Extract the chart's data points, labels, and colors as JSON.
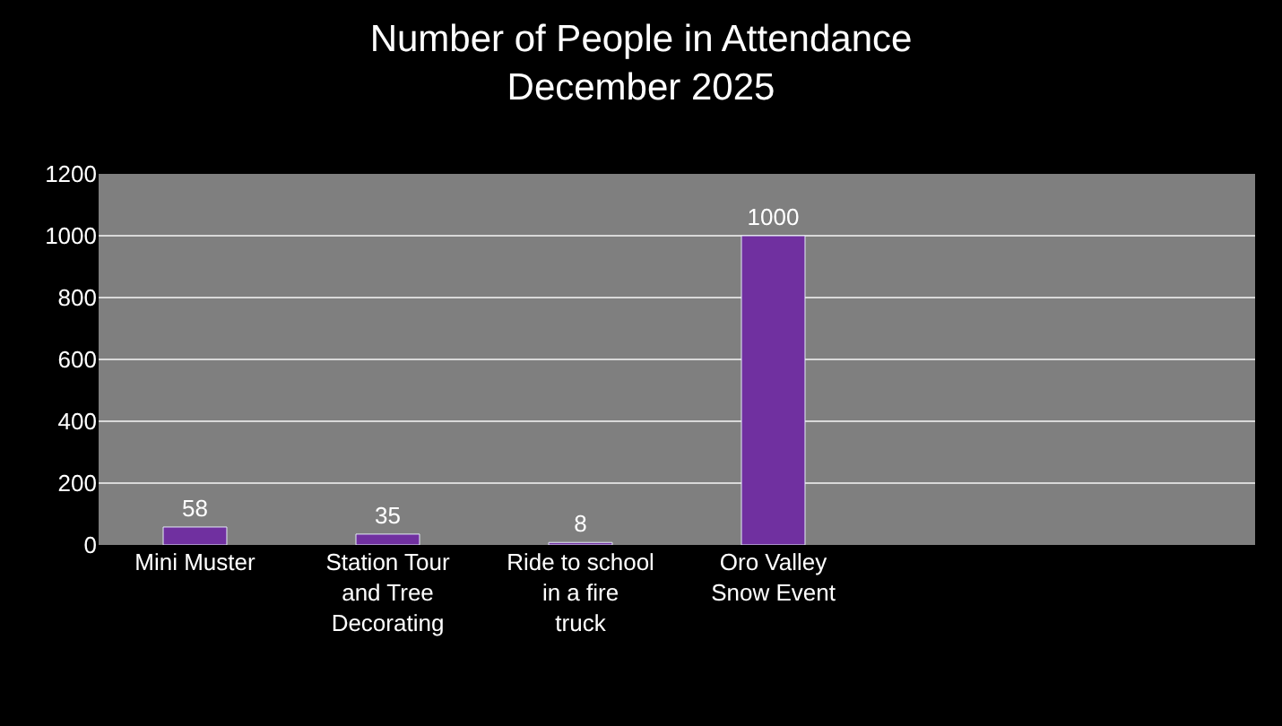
{
  "chart_data": {
    "type": "bar",
    "title": "Number of People in Attendance\nDecember 2025",
    "categories": [
      "Mini Muster",
      "Station Tour and Tree Decorating",
      "Ride to school in a fire truck",
      "Oro Valley Snow Event",
      null,
      null
    ],
    "values": [
      58,
      35,
      8,
      1000,
      null,
      null
    ],
    "color": "#7030a0",
    "ylim": [
      0,
      1200
    ],
    "yticks": [
      0,
      200,
      400,
      600,
      800,
      1000,
      1200
    ],
    "grid": "y",
    "data_labels": true
  }
}
